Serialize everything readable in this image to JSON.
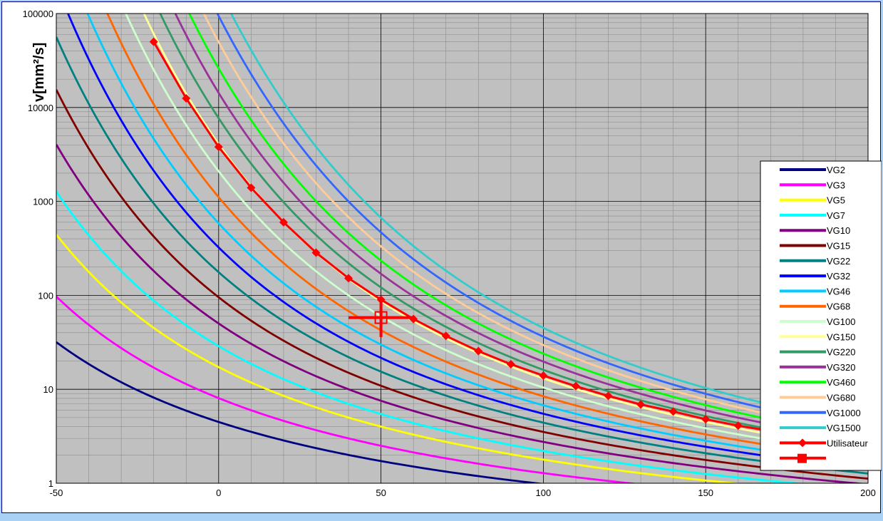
{
  "chart_data": {
    "type": "line",
    "title": "",
    "ylabel": "v[mm²/s]",
    "xlabel": "",
    "x_axis": {
      "min": -50,
      "max": 200,
      "ticks": [
        -50,
        0,
        50,
        100,
        150,
        200
      ],
      "minor_step": 10
    },
    "y_axis": {
      "scale": "log",
      "min": 1,
      "max": 100000,
      "ticks": [
        1,
        10,
        100,
        1000,
        10000,
        100000
      ]
    },
    "grid": true,
    "plot_background": "#c0c0c0",
    "legend_position": "right",
    "series": [
      {
        "name": "VG2",
        "color": "#000080",
        "vis40": 2
      },
      {
        "name": "VG3",
        "color": "#ff00ff",
        "vis40": 3
      },
      {
        "name": "VG5",
        "color": "#ffff00",
        "vis40": 5
      },
      {
        "name": "VG7",
        "color": "#00ffff",
        "vis40": 7
      },
      {
        "name": "VG10",
        "color": "#800080",
        "vis40": 10
      },
      {
        "name": "VG15",
        "color": "#800000",
        "vis40": 15
      },
      {
        "name": "VG22",
        "color": "#008080",
        "vis40": 22
      },
      {
        "name": "VG32",
        "color": "#0000ff",
        "vis40": 32
      },
      {
        "name": "VG46",
        "color": "#00ccff",
        "vis40": 46
      },
      {
        "name": "VG68",
        "color": "#ff6600",
        "vis40": 68
      },
      {
        "name": "VG100",
        "color": "#ccffcc",
        "vis40": 100
      },
      {
        "name": "VG150",
        "color": "#ffff99",
        "vis40": 150
      },
      {
        "name": "VG220",
        "color": "#339966",
        "vis40": 220
      },
      {
        "name": "VG320",
        "color": "#993399",
        "vis40": 320
      },
      {
        "name": "VG460",
        "color": "#00ff00",
        "vis40": 460
      },
      {
        "name": "VG680",
        "color": "#ffcc99",
        "vis40": 680
      },
      {
        "name": "VG1000",
        "color": "#3366ff",
        "vis40": 1000
      },
      {
        "name": "VG1500",
        "color": "#33cccc",
        "vis40": 1500
      }
    ],
    "user_series": {
      "name": "Utilisateur",
      "color": "#ff0000",
      "x": [
        -20,
        -10,
        0,
        10,
        20,
        30,
        40,
        50,
        60,
        70,
        80,
        90,
        100,
        110,
        120,
        130,
        140,
        150,
        160,
        170,
        180,
        190,
        200
      ],
      "y": [
        50000,
        12500,
        3800,
        1400,
        600,
        285,
        152,
        90,
        56,
        37,
        25.5,
        18.5,
        14,
        10.8,
        8.5,
        6.9,
        5.8,
        4.8,
        4.1,
        3.6,
        3.1,
        2.8,
        2.5
      ]
    },
    "operating_point": {
      "x": 50,
      "y": 58,
      "x_range": [
        40,
        60
      ],
      "y_range": [
        36,
        90
      ],
      "color": "#ff0000"
    }
  }
}
